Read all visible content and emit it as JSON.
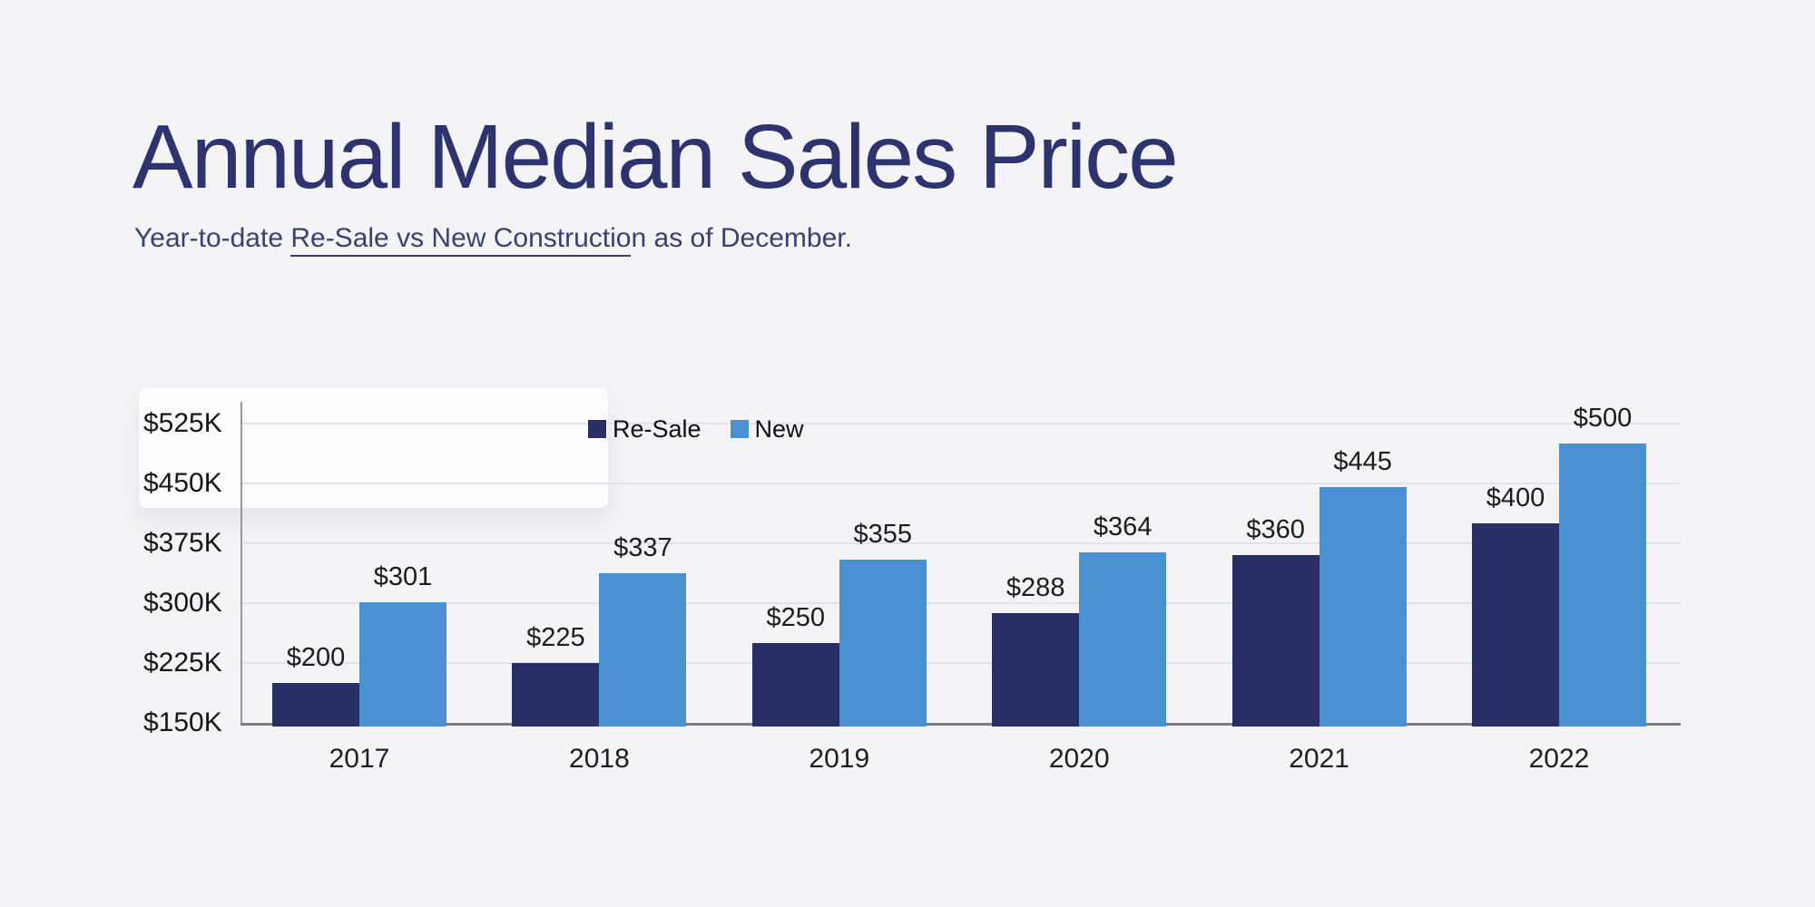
{
  "page": {
    "background_color": "#f4f4f6",
    "title_color": "#2c336e",
    "subtitle_color": "#3a416f",
    "label_color": "#1c1c1e",
    "gridline_color": "#dce3f1",
    "x_axis_color": "#7b7b80",
    "y_axis_color": "#98989d"
  },
  "header": {
    "title": "Annual Median Sales Price",
    "subtitle_prefix": "Year-to-date ",
    "subtitle_underlined": "Re-Sale vs New Constructio",
    "subtitle_suffix": "n as of December."
  },
  "chart_data": {
    "type": "bar",
    "title": "Annual Median Sales Price",
    "subtitle": "Year-to-date Re-Sale vs New Construction as of December.",
    "categories": [
      "2017",
      "2018",
      "2019",
      "2020",
      "2021",
      "2022"
    ],
    "series": [
      {
        "name": "Re-Sale",
        "color": "#272f66",
        "values": [
          200,
          225,
          250,
          288,
          360,
          400
        ],
        "value_labels": [
          "$200",
          "$225",
          "$250",
          "$288",
          "$360",
          "$400"
        ]
      },
      {
        "name": "New",
        "color": "#4b90d0",
        "values": [
          301,
          337,
          355,
          364,
          445,
          500
        ],
        "value_labels": [
          "$301",
          "$337",
          "$355",
          "$364",
          "$445",
          "$500"
        ]
      }
    ],
    "y_axis": {
      "unit": "$K (thousands USD)",
      "min": 150,
      "max": 552,
      "ticks": [
        {
          "value": 525,
          "label": "$525K"
        },
        {
          "value": 450,
          "label": "$450K"
        },
        {
          "value": 375,
          "label": "$375K"
        },
        {
          "value": 300,
          "label": "$300K"
        },
        {
          "value": 225,
          "label": "$225K"
        },
        {
          "value": 150,
          "label": "$150K"
        }
      ]
    },
    "grid": true,
    "legend_position": "inside-top-center",
    "legend": [
      "Re-Sale",
      "New"
    ]
  }
}
